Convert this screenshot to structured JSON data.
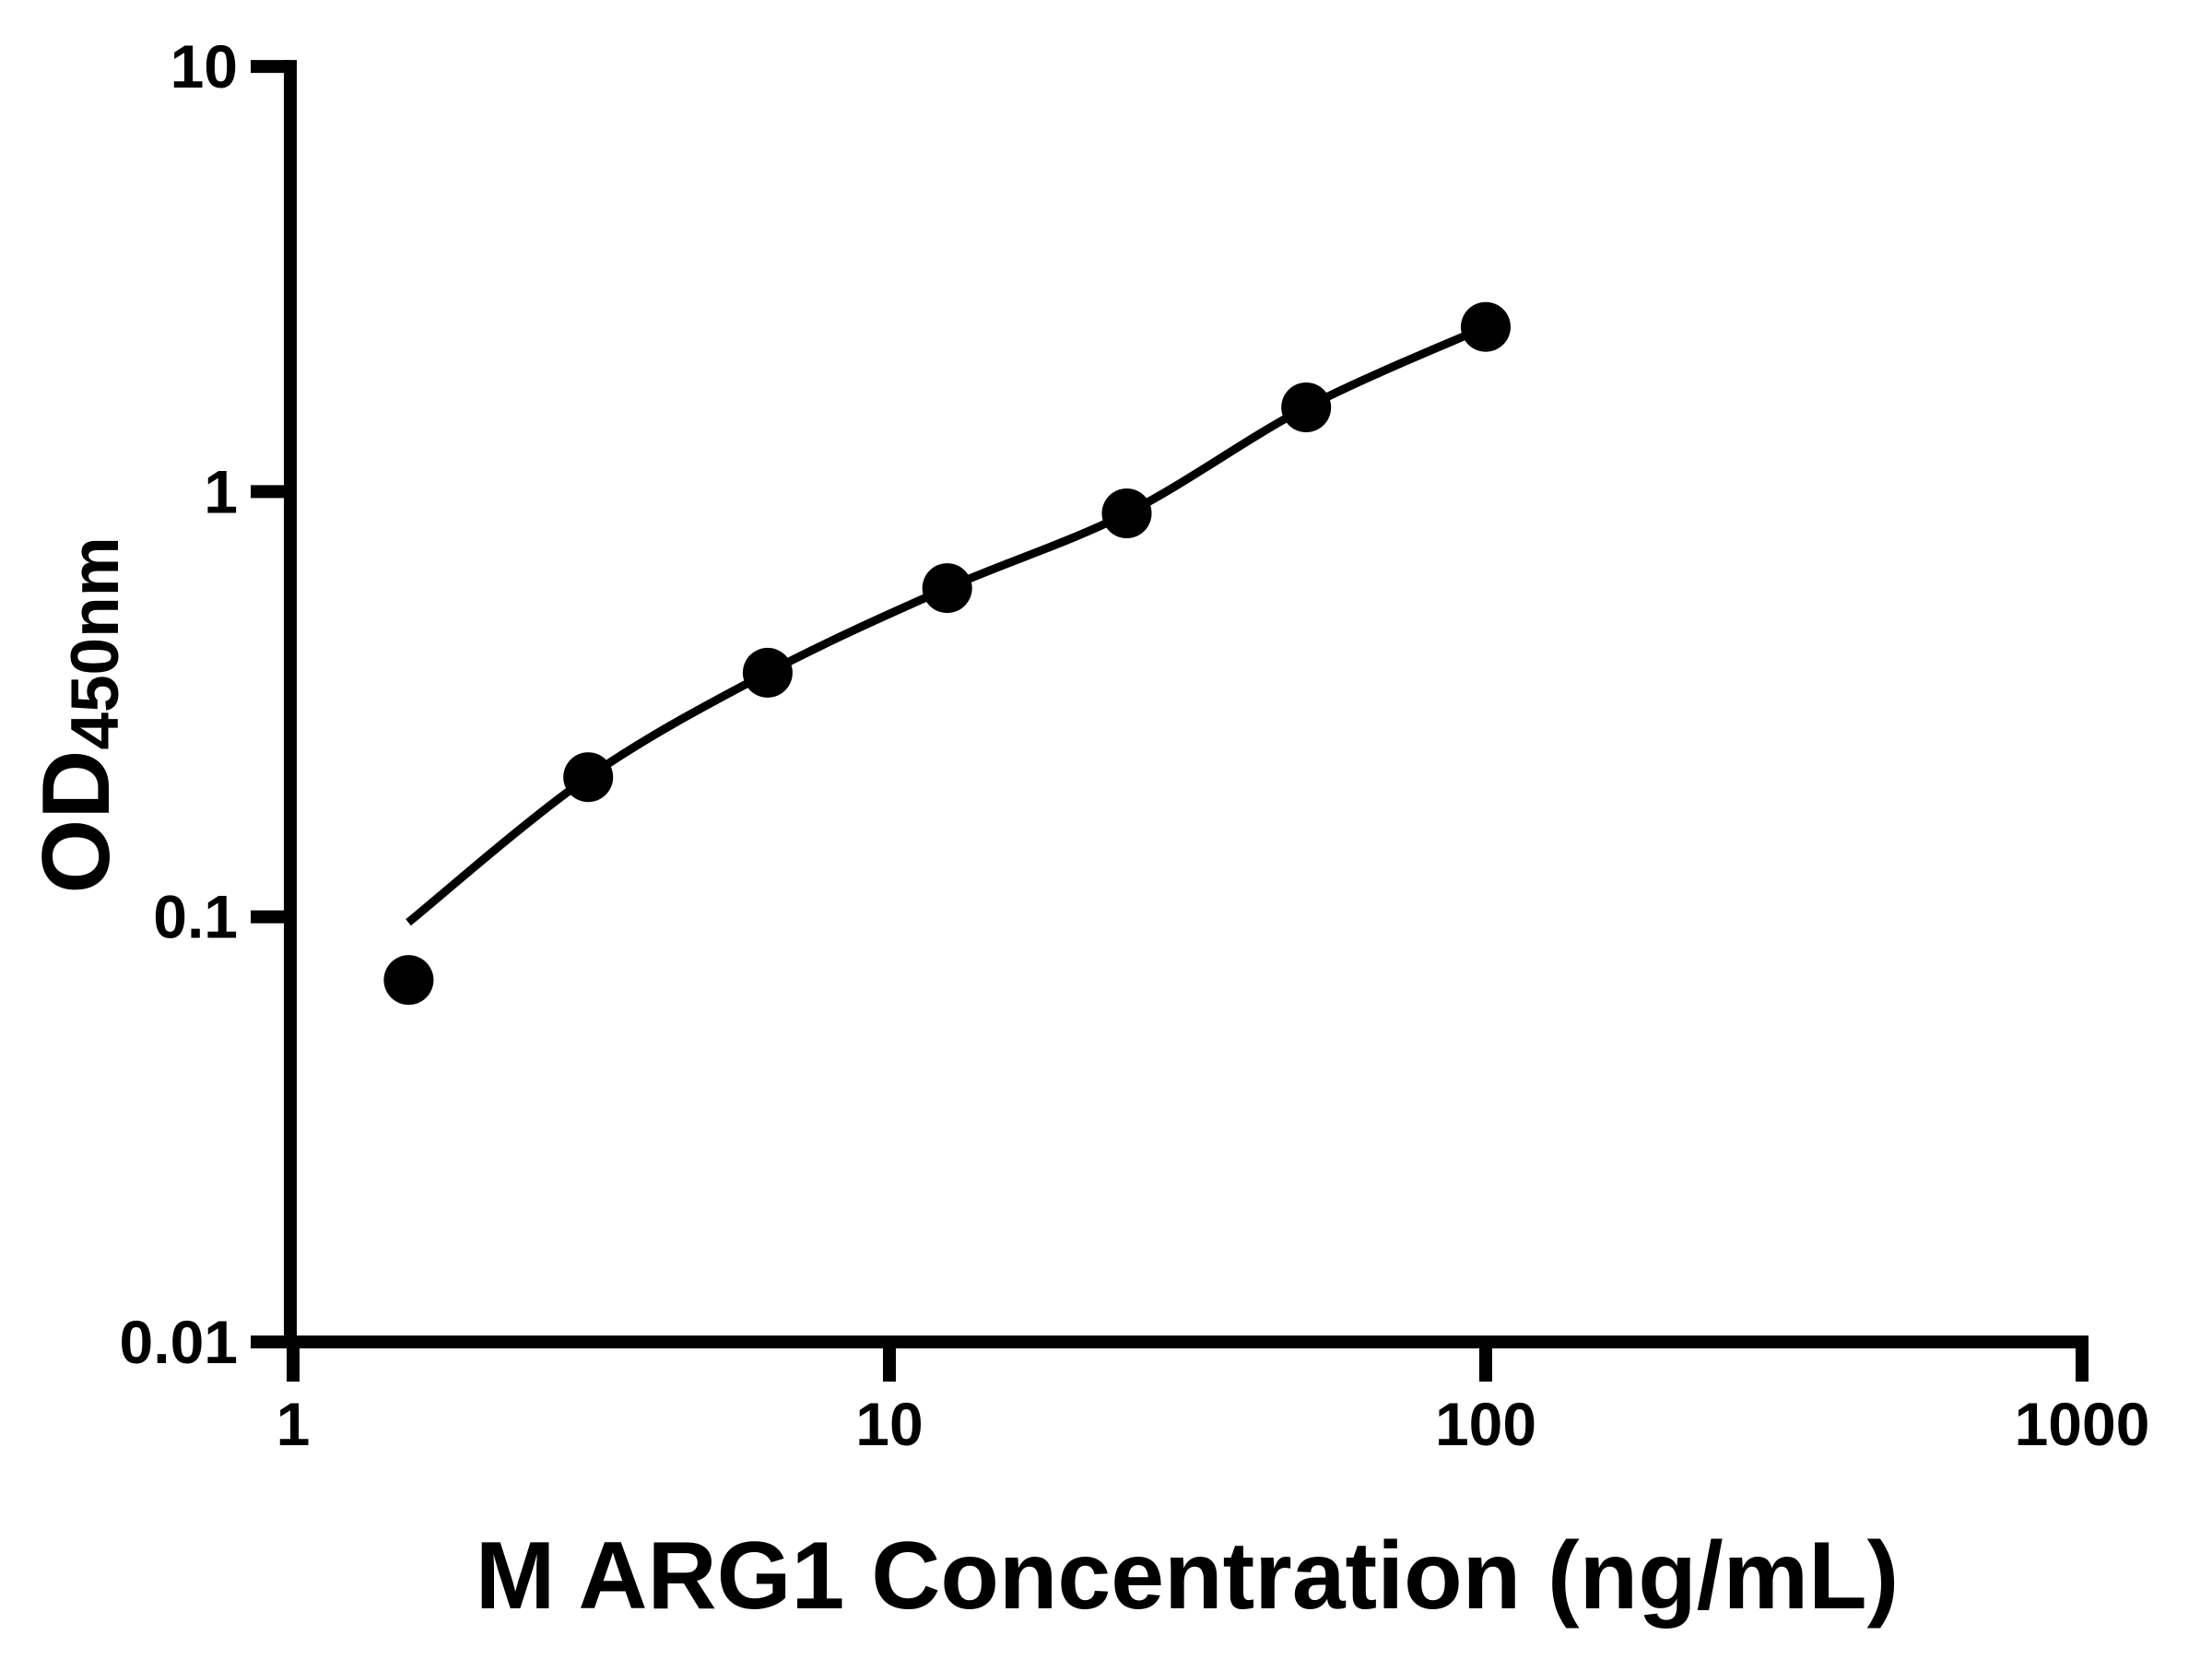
{
  "page": {
    "background": "#ffffff"
  },
  "chart_data": {
    "type": "scatter",
    "title": "",
    "xlabel": "M ARG1 Concentration (ng/mL)",
    "ylabel": "OD450nm",
    "ylabel_main": "OD",
    "ylabel_sub": "450nm",
    "x_scale": "log",
    "y_scale": "log",
    "xlim": [
      1,
      1000
    ],
    "ylim": [
      0.01,
      10
    ],
    "grid": false,
    "legend": false,
    "x_ticks": [
      {
        "value": 1,
        "label": "1"
      },
      {
        "value": 10,
        "label": "10"
      },
      {
        "value": 100,
        "label": "100"
      },
      {
        "value": 1000,
        "label": "1000"
      }
    ],
    "y_ticks": [
      {
        "value": 10,
        "label": "10"
      },
      {
        "value": 1,
        "label": "1"
      },
      {
        "value": 0.1,
        "label": "0.1"
      },
      {
        "value": 0.01,
        "label": "0.01"
      }
    ],
    "series": [
      {
        "name": "standard-points",
        "type": "scatter",
        "x": [
          1.5625,
          3.125,
          6.25,
          12.5,
          25,
          50,
          100
        ],
        "y": [
          0.071,
          0.213,
          0.375,
          0.593,
          0.889,
          1.578,
          2.44
        ]
      },
      {
        "name": "fit-curve",
        "type": "line",
        "x": [
          1.56,
          3.125,
          6.25,
          12.5,
          25,
          50,
          100
        ],
        "y": [
          0.097,
          0.213,
          0.375,
          0.593,
          0.889,
          1.578,
          2.44
        ]
      }
    ],
    "colors": {
      "axis": "#000000",
      "marker": "#000000",
      "curve": "#000000",
      "background": "#ffffff",
      "text": "#000000"
    }
  }
}
